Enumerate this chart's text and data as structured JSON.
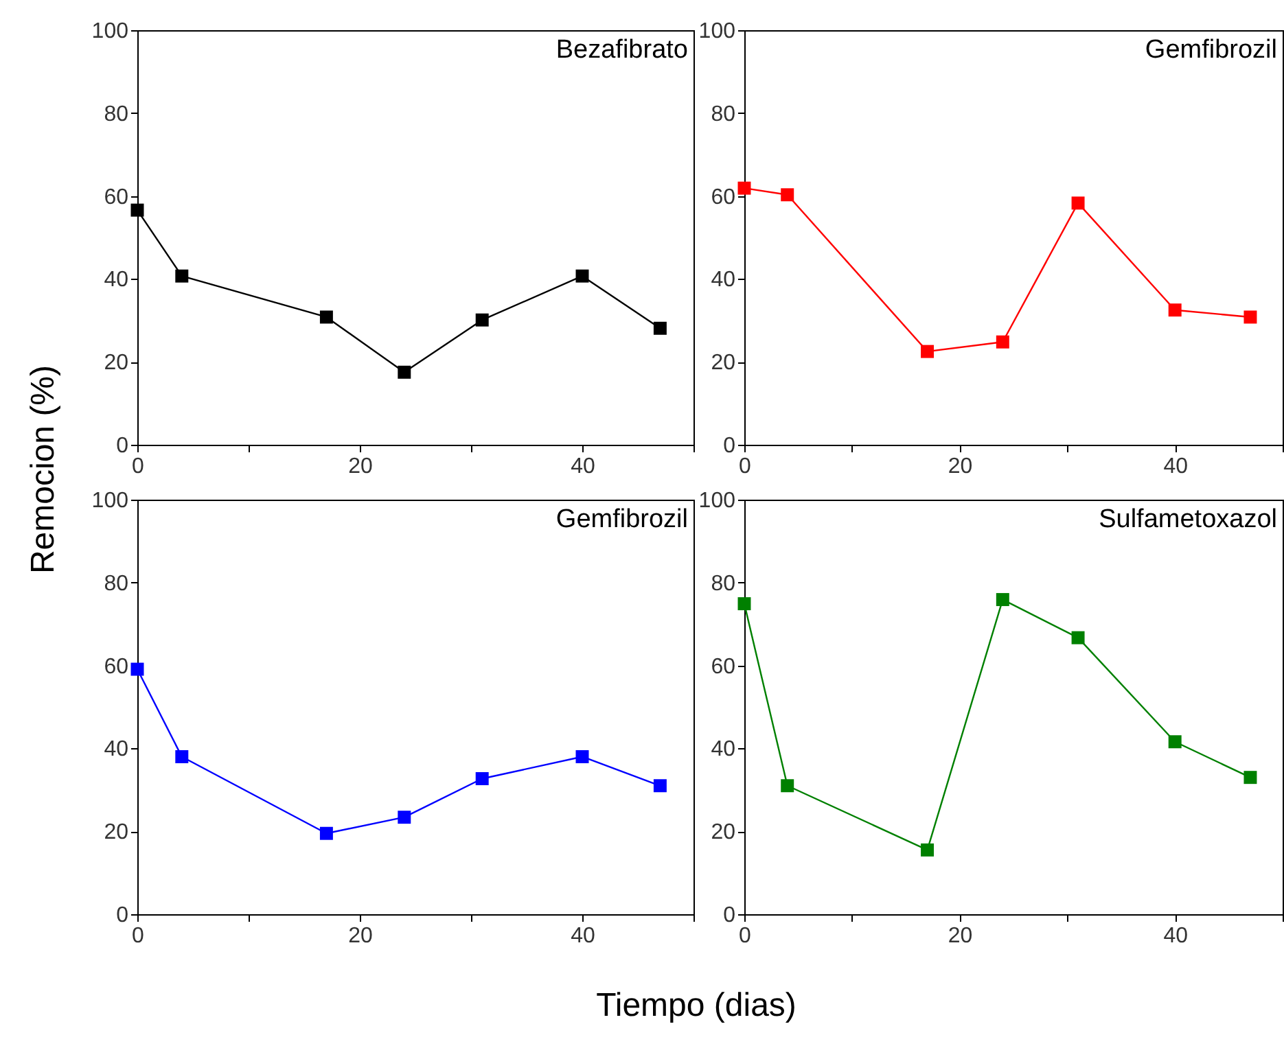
{
  "chart_data": [
    {
      "type": "line",
      "title": "Bezafibrato",
      "ylabel": "Remocion (%)",
      "x": [
        0,
        4,
        17,
        24,
        31,
        40,
        47
      ],
      "series": [
        {
          "color": "#000000",
          "values": [
            56.6,
            40.7,
            30.8,
            17.5,
            30.1,
            40.7,
            28.1
          ]
        }
      ],
      "xlim": [
        0,
        50
      ],
      "ylim": [
        0,
        100
      ],
      "xticks": [
        0,
        {
          "value": 10,
          "label": null
        },
        20,
        {
          "value": 30,
          "label": null
        },
        40,
        {
          "value": 50,
          "label": null
        }
      ],
      "yticks": [
        0,
        20,
        40,
        60,
        80,
        100
      ],
      "grid": false,
      "marker": "square",
      "line_style": "solid"
    },
    {
      "type": "line",
      "title": "Gemfibrozil",
      "x": [
        0,
        4,
        17,
        24,
        31,
        40,
        47
      ],
      "series": [
        {
          "color": "#ff0000",
          "values": [
            61.9,
            60.3,
            22.5,
            24.8,
            58.3,
            32.5,
            30.8
          ]
        }
      ],
      "xlim": [
        0,
        50
      ],
      "ylim": [
        0,
        100
      ],
      "xticks": [
        0,
        {
          "value": 10,
          "label": null
        },
        20,
        {
          "value": 30,
          "label": null
        },
        40,
        {
          "value": 50,
          "label": null
        }
      ],
      "yticks": [
        0,
        20,
        40,
        60,
        80,
        100
      ],
      "grid": false,
      "marker": "square",
      "line_style": "solid"
    },
    {
      "type": "line",
      "title": "Gemfibrozil",
      "xlabel": "Tiempo (dias)",
      "x": [
        0,
        4,
        17,
        24,
        31,
        40,
        47
      ],
      "series": [
        {
          "color": "#0000ff",
          "values": [
            59.1,
            38.0,
            19.5,
            23.4,
            32.7,
            38.0,
            31.0
          ]
        }
      ],
      "xlim": [
        0,
        50
      ],
      "ylim": [
        0,
        100
      ],
      "xticks": [
        0,
        {
          "value": 10,
          "label": null
        },
        20,
        {
          "value": 30,
          "label": null
        },
        40,
        {
          "value": 50,
          "label": null
        }
      ],
      "yticks": [
        0,
        20,
        40,
        60,
        80,
        100
      ],
      "grid": false,
      "marker": "square",
      "line_style": "solid"
    },
    {
      "type": "line",
      "title": "Sulfametoxazol",
      "x": [
        0,
        4,
        17,
        24,
        31,
        40,
        47
      ],
      "series": [
        {
          "color": "#008000",
          "values": [
            74.9,
            31.0,
            15.5,
            75.9,
            66.7,
            41.6,
            33.0
          ]
        }
      ],
      "xlim": [
        0,
        50
      ],
      "ylim": [
        0,
        100
      ],
      "xticks": [
        0,
        {
          "value": 10,
          "label": null
        },
        20,
        {
          "value": 30,
          "label": null
        },
        40,
        {
          "value": 50,
          "label": null
        }
      ],
      "yticks": [
        0,
        20,
        40,
        60,
        80,
        100
      ],
      "grid": false,
      "marker": "square",
      "line_style": "solid"
    }
  ]
}
